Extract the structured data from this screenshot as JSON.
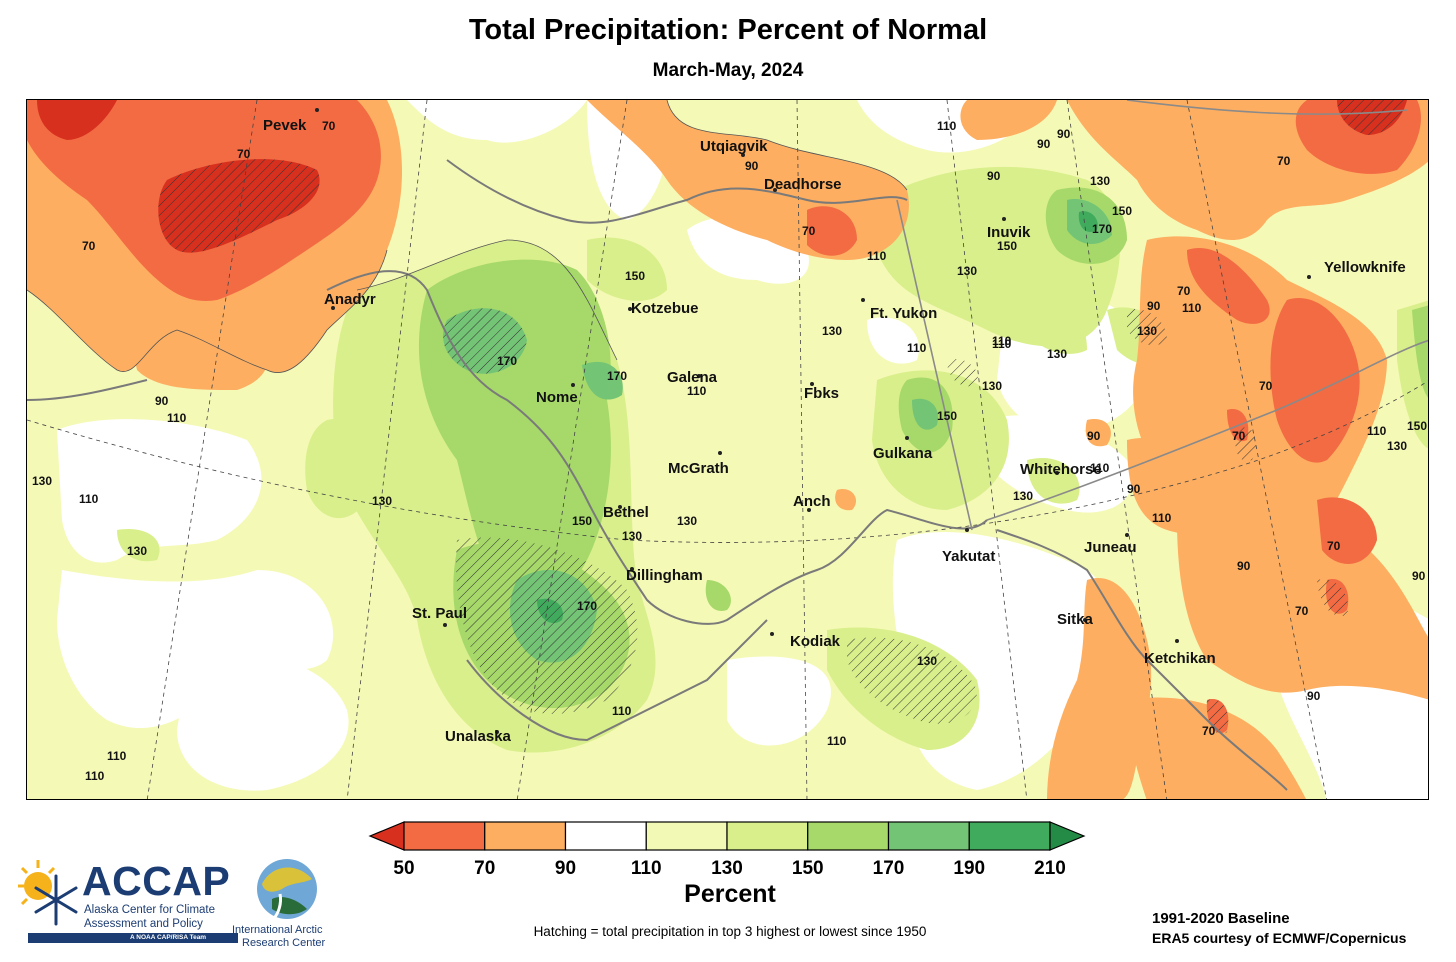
{
  "title": "Total Precipitation: Percent of Normal",
  "subtitle": "March-May, 2024",
  "places": [
    "Pevek",
    "Anadyr",
    "Utqiagvik",
    "Deadhorse",
    "Inuvik",
    "Yellowknife",
    "Kotzebue",
    "Ft. Yukon",
    "Galena",
    "Nome",
    "Fbks",
    "Gulkana",
    "McGrath",
    "Whitehorse",
    "Bethel",
    "Anch",
    "Yakutat",
    "Juneau",
    "Dillingham",
    "St. Paul",
    "Sitka",
    "Kodiak",
    "Ketchikan",
    "Unalaska"
  ],
  "contour_labels": [
    "70",
    "90",
    "110",
    "130",
    "150",
    "170"
  ],
  "legend": {
    "ticks": [
      "50",
      "70",
      "90",
      "110",
      "130",
      "150",
      "170",
      "190",
      "210"
    ],
    "colors": [
      "#f26b43",
      "#fdae61",
      "#ffffff",
      "#f2f9b4",
      "#d9ef8b",
      "#a6d96a",
      "#74c476",
      "#41ab5d"
    ],
    "under_color": "#d7301f",
    "over_color": "#238b45",
    "units": "Percent"
  },
  "hatch_note": "Hatching = total precipitation in top 3 highest or lowest since 1950",
  "baseline": "1991-2020 Baseline",
  "source": "ERA5 courtesy of ECMWF/Copernicus",
  "logos": {
    "accap_name": "ACCAP",
    "accap_full_line1": "Alaska Center for Climate",
    "accap_full_line2": "Assessment and Policy",
    "accap_tag": "A NOAA CAP/RISA Team",
    "iarc_line1": "International Arctic",
    "iarc_line2": "Research Center"
  }
}
